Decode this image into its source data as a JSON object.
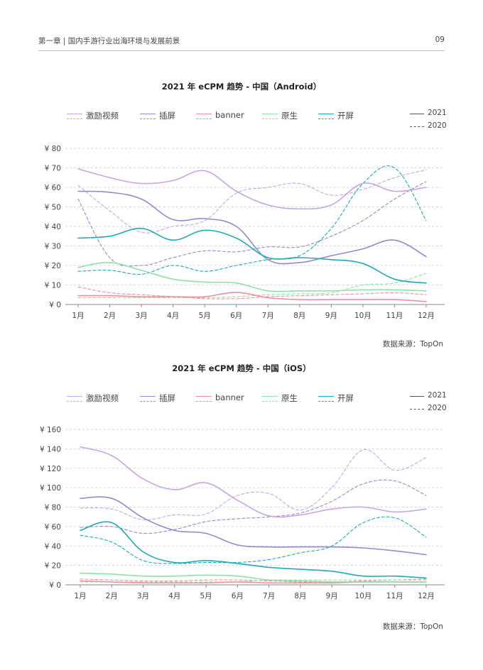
{
  "header": {
    "left": "第一章 | 国内手游行业出海环境与发展前景",
    "page_number": "09"
  },
  "legend_years": {
    "solid": "2021",
    "dashed": "2020"
  },
  "source_note": "数据来源：TopOn",
  "colors": {
    "激励视频": "#c7a6e6",
    "插屏": "#9888cc",
    "banner": "#ee8fa0",
    "原生": "#90e0a8",
    "开屏": "#20a9b8"
  },
  "chart_data": [
    {
      "type": "line",
      "title": "2021 年 eCPM 趋势 - 中国（Android）",
      "categories": [
        "1月",
        "2月",
        "3月",
        "4月",
        "5月",
        "6月",
        "7月",
        "8月",
        "9月",
        "10月",
        "11月",
        "12月"
      ],
      "y_tick_labels": [
        "¥ 0",
        "¥ 10",
        "¥ 20",
        "¥ 30",
        "¥ 40",
        "¥ 50",
        "¥ 60",
        "¥ 70",
        "¥ 80"
      ],
      "ylim": [
        0,
        80
      ],
      "grid": true,
      "legend": "top",
      "series": [
        {
          "name": "激励视频",
          "year": "2021",
          "values": [
            69.5,
            65,
            62,
            63.5,
            68.5,
            58,
            51,
            49,
            51,
            62,
            58,
            60
          ]
        },
        {
          "name": "激励视频",
          "year": "2020",
          "values": [
            61,
            48,
            37,
            40,
            43,
            57,
            60,
            62,
            56,
            59,
            65,
            69
          ]
        },
        {
          "name": "插屏",
          "year": "2021",
          "values": [
            58,
            57.5,
            54,
            43.5,
            44,
            40,
            23,
            21.5,
            25,
            28.5,
            33,
            24.5
          ]
        },
        {
          "name": "插屏",
          "year": "2020",
          "values": [
            54,
            24,
            20,
            24,
            27.5,
            27,
            29.5,
            29.5,
            35,
            43,
            54,
            63
          ]
        },
        {
          "name": "banner",
          "year": "2021",
          "values": [
            4.5,
            4.5,
            4,
            4,
            4,
            6.2,
            3.5,
            2.5,
            2.5,
            2.5,
            2.5,
            1.5
          ]
        },
        {
          "name": "banner",
          "year": "2020",
          "values": [
            9,
            6,
            5,
            4,
            3,
            3,
            4,
            4.5,
            5,
            5.5,
            6,
            5
          ]
        },
        {
          "name": "原生",
          "year": "2021",
          "values": [
            19,
            21.5,
            17.5,
            13,
            11.5,
            11,
            7,
            7,
            7,
            7.5,
            7.5,
            7
          ]
        },
        {
          "name": "原生",
          "year": "2020",
          "values": [
            3.5,
            3.5,
            3.5,
            3.5,
            3.5,
            4,
            5,
            5.5,
            6,
            10,
            11,
            16
          ]
        },
        {
          "name": "开屏",
          "year": "2021",
          "values": [
            34,
            35,
            39,
            33,
            38,
            34,
            24,
            24,
            23,
            21,
            13,
            11
          ]
        },
        {
          "name": "开屏",
          "year": "2020",
          "values": [
            17,
            17.5,
            15.5,
            20,
            17,
            20,
            23,
            25,
            39,
            62,
            70,
            43
          ]
        }
      ]
    },
    {
      "type": "line",
      "title": "2021 年 eCPM 趋势 - 中国（iOS）",
      "categories": [
        "1月",
        "2月",
        "3月",
        "4月",
        "5月",
        "6月",
        "7月",
        "8月",
        "9月",
        "10月",
        "11月",
        "12月"
      ],
      "y_tick_labels": [
        "¥ 0",
        "¥ 20",
        "¥ 40",
        "¥ 60",
        "¥ 80",
        "¥ 100",
        "¥ 120",
        "¥ 140",
        "¥ 160"
      ],
      "ylim": [
        0,
        160
      ],
      "grid": true,
      "legend": "top",
      "series": [
        {
          "name": "激励视频",
          "year": "2021",
          "values": [
            142,
            133,
            109,
            98,
            105,
            87,
            71,
            72,
            78,
            80,
            75,
            78
          ]
        },
        {
          "name": "激励视频",
          "year": "2020",
          "values": [
            79,
            78,
            67,
            72,
            73,
            92,
            94,
            77,
            100,
            139,
            118,
            131
          ]
        },
        {
          "name": "插屏",
          "year": "2021",
          "values": [
            89,
            89,
            69,
            56,
            53,
            41,
            39,
            39,
            39,
            38,
            35,
            31
          ]
        },
        {
          "name": "插屏",
          "year": "2020",
          "values": [
            59,
            60,
            53,
            57,
            65,
            68,
            70,
            74,
            86,
            104,
            107,
            92
          ]
        },
        {
          "name": "banner",
          "year": "2021",
          "values": [
            4,
            3,
            2,
            2,
            2,
            3,
            2,
            2,
            2,
            3,
            3,
            3
          ]
        },
        {
          "name": "banner",
          "year": "2020",
          "values": [
            6,
            5,
            4,
            4,
            5,
            5,
            4,
            3,
            3,
            4,
            5,
            6
          ]
        },
        {
          "name": "原生",
          "year": "2021",
          "values": [
            12,
            11,
            9,
            9,
            10,
            9,
            5,
            4,
            3,
            3,
            3,
            3
          ]
        },
        {
          "name": "原生",
          "year": "2020",
          "values": [
            3,
            3,
            3,
            3,
            3,
            3,
            5,
            5,
            5,
            5,
            5,
            5
          ]
        },
        {
          "name": "开屏",
          "year": "2021",
          "values": [
            56,
            64,
            34,
            23,
            25,
            22,
            18,
            16,
            14,
            9,
            9,
            7
          ]
        },
        {
          "name": "开屏",
          "year": "2020",
          "values": [
            51,
            44,
            25,
            22,
            23,
            23,
            26,
            33,
            40,
            64,
            69,
            49
          ]
        }
      ]
    }
  ]
}
